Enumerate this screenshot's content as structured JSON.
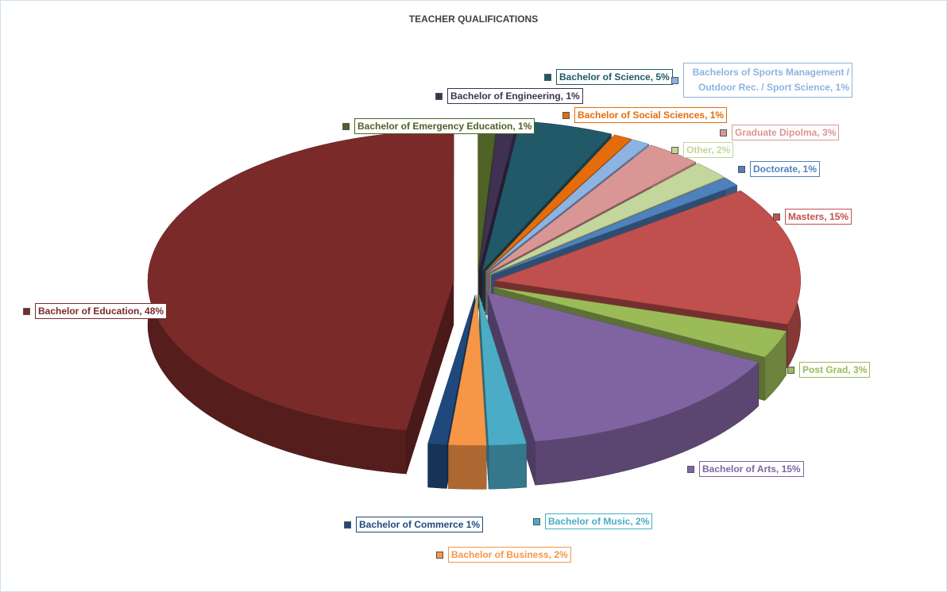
{
  "chart_data": {
    "type": "pie",
    "title": "TEACHER QUALIFICATIONS",
    "categories": [
      "Bachelor of Emergency Education",
      "Bachelor of Engineering",
      "Bachelor of Science",
      "Bachelor of Social Sciences",
      "Bachelors of Sports Management / Outdoor Rec. / Sport Science",
      "Graduate Dipolma",
      "Other",
      "Doctorate",
      "Masters",
      "Post Grad",
      "Bachelor of Arts",
      "Bachelor of Music",
      "Bachelor of Business",
      "Bachelor of Commerce",
      "Bachelor of Education"
    ],
    "values": [
      1,
      1,
      5,
      1,
      1,
      3,
      2,
      1,
      15,
      3,
      15,
      2,
      2,
      1,
      48
    ],
    "value_labels": [
      "Bachelor of Emergency Education, 1%",
      "Bachelor of Engineering, 1%",
      "Bachelor of Science, 5%",
      "Bachelor of Social Sciences, 1%",
      "Bachelors of Sports Management / Outdoor Rec. / Sport Science, 1%",
      "Graduate Dipolma, 3%",
      "Other, 2%",
      "Doctorate, 1%",
      "Masters, 15%",
      "Post Grad, 3%",
      "Bachelor of Arts, 15%",
      "Bachelor of Music, 2%",
      "Bachelor of Business, 2%",
      "Bachelor of Commerce 1%",
      "Bachelor of Education, 48%"
    ],
    "colors": [
      "#4f6228",
      "#403152",
      "#215968",
      "#e46c0a",
      "#8db3e2",
      "#d99694",
      "#c3d69b",
      "#4f81bd",
      "#c0504d",
      "#9bbb59",
      "#8064a2",
      "#4bacc6",
      "#f79646",
      "#1f497d",
      "#7b2a2a"
    ]
  }
}
